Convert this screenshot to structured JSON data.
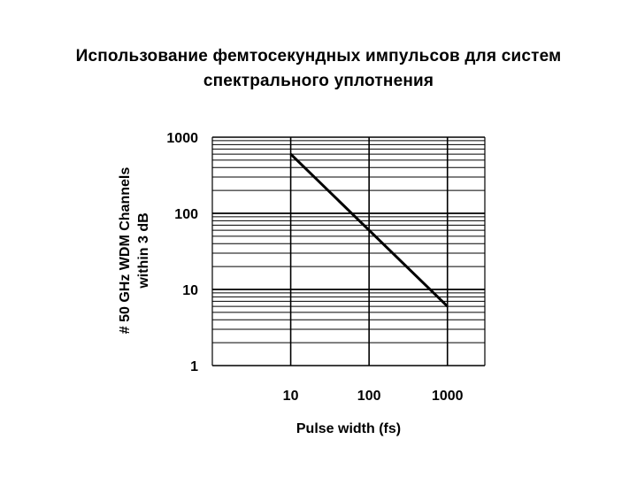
{
  "slide": {
    "title_line1": "Использование фемтосекундных импульсов для систем",
    "title_line2": "спектрального уплотнения"
  },
  "chart_data": {
    "type": "line",
    "title": "",
    "xlabel": "Pulse width (fs)",
    "ylabel_line1": "# 50 GHz WDM Channels",
    "ylabel_line2": "within 3 dB",
    "x_scale": "log",
    "y_scale": "log",
    "xlim": [
      1,
      3000
    ],
    "ylim": [
      1,
      1000
    ],
    "x_ticks": [
      {
        "value": 10,
        "label": "10"
      },
      {
        "value": 100,
        "label": "100"
      },
      {
        "value": 1000,
        "label": "1000"
      }
    ],
    "y_ticks": [
      {
        "value": 1,
        "label": "1"
      },
      {
        "value": 10,
        "label": "10"
      },
      {
        "value": 100,
        "label": "100"
      },
      {
        "value": 1000,
        "label": "1000"
      }
    ],
    "grid": true,
    "series": [
      {
        "color": "#000000",
        "points": [
          {
            "x": 10,
            "y": 600
          },
          {
            "x": 1000,
            "y": 6
          }
        ]
      }
    ]
  }
}
